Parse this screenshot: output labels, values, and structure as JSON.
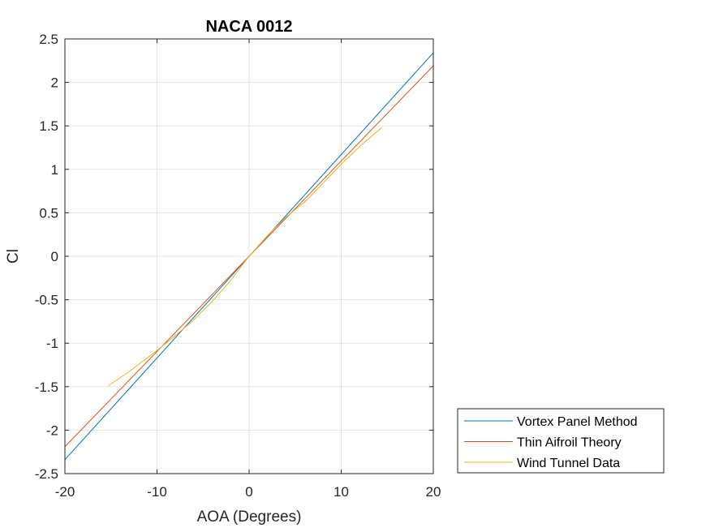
{
  "chart_data": {
    "type": "line",
    "title": "NACA 0012",
    "xlabel": "AOA (Degrees)",
    "ylabel": "Cl",
    "xlim": [
      -20,
      20
    ],
    "ylim": [
      -2.5,
      2.5
    ],
    "xticks": [
      -20,
      -10,
      0,
      10,
      20
    ],
    "xtick_labels": [
      "-20",
      "-10",
      "0",
      "10",
      "20"
    ],
    "yticks": [
      -2.5,
      -2,
      -1.5,
      -1,
      -0.5,
      0,
      0.5,
      1,
      1.5,
      2,
      2.5
    ],
    "ytick_labels": [
      "-2.5",
      "-2",
      "-1.5",
      "-1",
      "-0.5",
      "0",
      "0.5",
      "1",
      "1.5",
      "2",
      "2.5"
    ],
    "grid": true,
    "legend_position": "bottom-right outside",
    "series": [
      {
        "name": "Vortex Panel Method",
        "color": "#0072BD",
        "x": [
          -20,
          20
        ],
        "y": [
          -2.34,
          2.34
        ]
      },
      {
        "name": "Thin Aifroil Theory",
        "color": "#D95319",
        "x": [
          -20,
          20
        ],
        "y": [
          -2.19,
          2.19
        ]
      },
      {
        "name": "Wind Tunnel Data",
        "color": "#EDB120",
        "x": [
          -15.3,
          -13.2,
          -10.2,
          -8.2,
          -6.1,
          -4.1,
          -2.1,
          0,
          2.1,
          4.1,
          6.2,
          8.2,
          10.2,
          11.4,
          12.4,
          13.4,
          14.4
        ],
        "y": [
          -1.49,
          -1.34,
          -1.1,
          -0.93,
          -0.74,
          -0.53,
          -0.29,
          0,
          0.25,
          0.46,
          0.64,
          0.86,
          1.08,
          1.2,
          1.3,
          1.39,
          1.48
        ]
      }
    ]
  }
}
